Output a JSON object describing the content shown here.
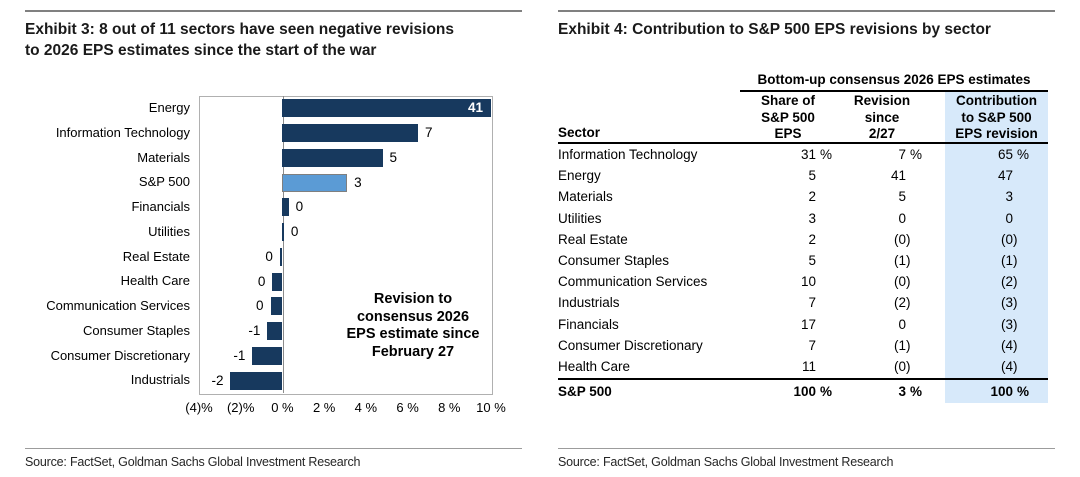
{
  "left_panel": {
    "title_lines": [
      "Exhibit 3: 8 out of 11 sectors have seen negative revisions",
      "to 2026 EPS estimates since the start of the war"
    ],
    "source": "Source: FactSet, Goldman Sachs Global Investment Research"
  },
  "right_panel": {
    "title": "Exhibit 4: Contribution to S&P 500 EPS revisions by sector",
    "source": "Source: FactSet, Goldman Sachs Global Investment Research"
  },
  "chart_data": [
    {
      "type": "bar",
      "orientation": "horizontal",
      "title": "Exhibit 3: 8 out of 11 sectors have seen negative revisions to 2026 EPS estimates since the start of the war",
      "categories": [
        "Energy",
        "Information Technology",
        "Materials",
        "S&P 500",
        "Financials",
        "Utilities",
        "Real Estate",
        "Health Care",
        "Communication Services",
        "Consumer Staples",
        "Consumer Discretionary",
        "Industrials"
      ],
      "values": [
        41,
        7,
        5,
        3,
        0,
        0,
        0,
        0,
        0,
        -1,
        -1,
        -2
      ],
      "value_labels": [
        "41",
        "7",
        "5",
        "3",
        "0",
        "0",
        "0",
        "0",
        "0",
        "-1",
        "-1",
        "-2"
      ],
      "bar_extents_pct": [
        10,
        6.5,
        4.8,
        3.1,
        0.3,
        0.07,
        -0.12,
        -0.48,
        -0.57,
        -0.72,
        -1.44,
        -2.49
      ],
      "xlim": [
        -4,
        10
      ],
      "x_tick_values": [
        -4,
        -2,
        0,
        2,
        4,
        6,
        8,
        10
      ],
      "x_tick_labels": [
        "(4)%",
        "(2)%",
        "0 %",
        "2 %",
        "4 %",
        "6 %",
        "8 %",
        "10 %"
      ],
      "grid": false,
      "legend": "none",
      "highlight_index": 3,
      "colors": {
        "bar": "#17395e",
        "highlight_bar": "#5b9bd5"
      },
      "annotation_lines": [
        "Revision to",
        "consensus 2026",
        "EPS estimate since",
        "February 27"
      ],
      "clipped_note": "Energy bar clipped at axis max 10%; labeled value is 41"
    },
    {
      "type": "table",
      "title": "Exhibit 4: Contribution to S&P 500 EPS revisions by sector",
      "span_header": "Bottom-up consensus 2026 EPS estimates",
      "columns": [
        "Sector",
        "Share of S&P 500 EPS",
        "Revision since 2/27",
        "Contribution to S&P 500 EPS revision"
      ],
      "column_header_lines": {
        "sector": "Sector",
        "share": [
          "Share of",
          "S&P 500",
          "EPS"
        ],
        "revision": [
          "Revision",
          "since",
          "2/27"
        ],
        "contribution": [
          "Contribution",
          "to S&P 500",
          "EPS revision"
        ]
      },
      "rows": [
        [
          "Information Technology",
          "31 %",
          "7 %",
          "65 %"
        ],
        [
          "Energy",
          "5",
          "41",
          "47"
        ],
        [
          "Materials",
          "2",
          "5",
          "3"
        ],
        [
          "Utilities",
          "3",
          "0",
          "0"
        ],
        [
          "Real Estate",
          "2",
          "(0)",
          "(0)"
        ],
        [
          "Consumer Staples",
          "5",
          "(1)",
          "(1)"
        ],
        [
          "Communication Services",
          "10",
          "(0)",
          "(2)"
        ],
        [
          "Industrials",
          "7",
          "(2)",
          "(3)"
        ],
        [
          "Financials",
          "17",
          "0",
          "(3)"
        ],
        [
          "Consumer Discretionary",
          "7",
          "(1)",
          "(4)"
        ],
        [
          "Health Care",
          "11",
          "(0)",
          "(4)"
        ]
      ],
      "total_row": [
        "S&P 500",
        "100 %",
        "3 %",
        "100 %"
      ],
      "highlight_column": "Contribution to S&P 500 EPS revision",
      "highlight_color": "#d7e9fa"
    }
  ]
}
